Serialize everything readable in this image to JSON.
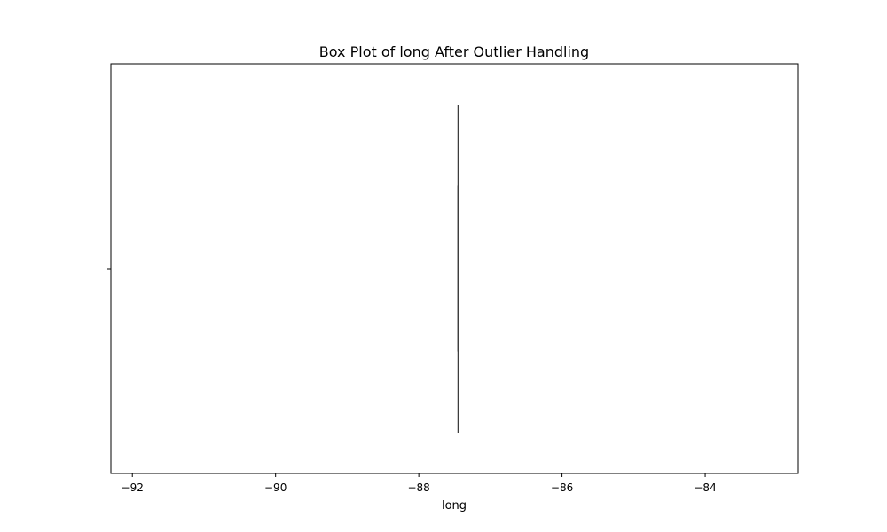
{
  "chart_data": {
    "type": "box",
    "title": "Box Plot of long After Outlier Handling",
    "xlabel": "long",
    "ylabel": "",
    "xlim": [
      -92.3,
      -82.7
    ],
    "xticks": [
      -92,
      -90,
      -88,
      -86,
      -84
    ],
    "xtick_labels": [
      "−92",
      "−90",
      "−88",
      "−86",
      "−84"
    ],
    "grid": false,
    "orientation": "horizontal",
    "box": {
      "whisker_low": -87.45,
      "q1": -87.45,
      "median": -87.45,
      "q3": -87.45,
      "whisker_high": -87.45
    },
    "colors": {
      "box_line": "#3d3d3d",
      "frame": "#000000"
    }
  }
}
